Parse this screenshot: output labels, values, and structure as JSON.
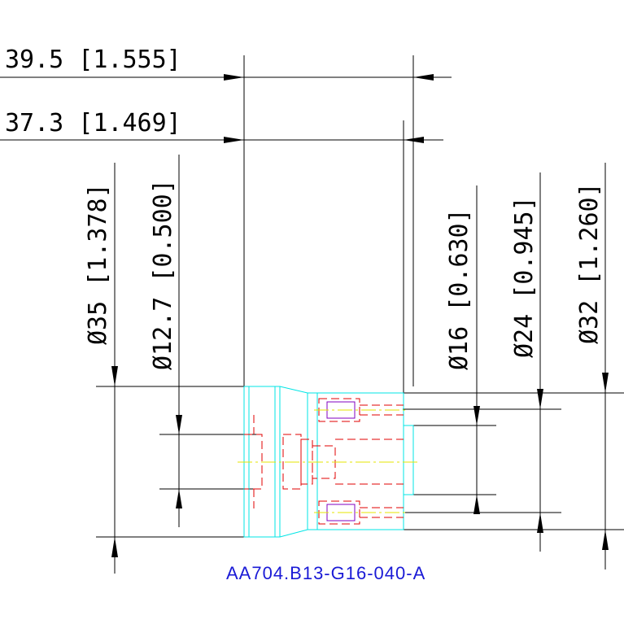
{
  "drawing": {
    "horizontal_dims": [
      {
        "label": "39.5 [1.555]"
      },
      {
        "label": "37.3 [1.469]"
      }
    ],
    "vertical_dims": [
      {
        "label": "Ø35 [1.378]"
      },
      {
        "label": "Ø12.7 [0.500]"
      },
      {
        "label": "Ø16 [0.630]"
      },
      {
        "label": "Ø24 [0.945]"
      },
      {
        "label": "Ø32 [1.260]"
      }
    ],
    "part_number": "AA704.B13-G16-040-A",
    "colors": {
      "outline": "#00e5e5",
      "hidden": "#e00000",
      "centerline": "#e6e600",
      "dimension": "#000000",
      "part_number": "#1a1ad6",
      "thread": "#8000c0"
    }
  }
}
